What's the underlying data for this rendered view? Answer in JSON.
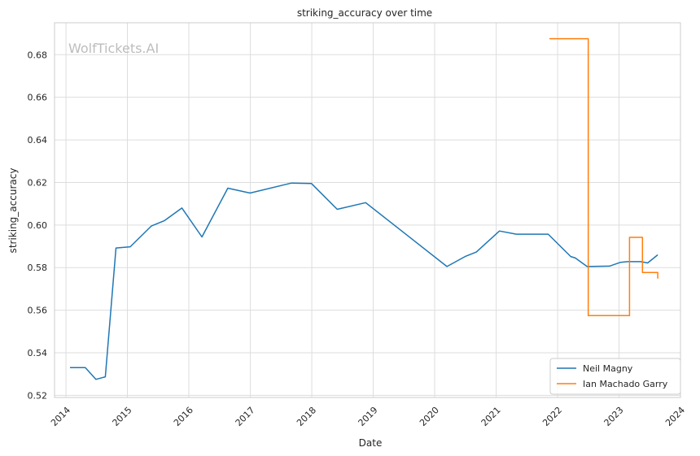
{
  "chart_data": {
    "type": "line",
    "title": "striking_accuracy over time",
    "xlabel": "Date",
    "ylabel": "striking_accuracy",
    "watermark": "WolfTickets.AI",
    "xlim": [
      "2013-10-25",
      "2024-01-01"
    ],
    "ylim": [
      0.519,
      0.695
    ],
    "x_ticks": [
      "2014",
      "2015",
      "2016",
      "2017",
      "2018",
      "2019",
      "2020",
      "2021",
      "2022",
      "2023",
      "2024"
    ],
    "y_ticks": [
      0.52,
      0.54,
      0.56,
      0.58,
      0.6,
      0.62,
      0.64,
      0.66,
      0.68
    ],
    "y_tick_labels": [
      "0.52",
      "0.54",
      "0.56",
      "0.58",
      "0.60",
      "0.62",
      "0.64",
      "0.66",
      "0.68"
    ],
    "grid": true,
    "legend_position": "lower-right",
    "series": [
      {
        "name": "Neil Magny",
        "color": "#1f77b4",
        "step": false,
        "points": [
          [
            "2014-01-25",
            0.533
          ],
          [
            "2014-04-26",
            0.533
          ],
          [
            "2014-06-28",
            0.5275
          ],
          [
            "2014-08-23",
            0.5287
          ],
          [
            "2014-10-25",
            0.5892
          ],
          [
            "2015-01-18",
            0.5898
          ],
          [
            "2015-05-23",
            0.5995
          ],
          [
            "2015-08-08",
            0.602
          ],
          [
            "2015-11-21",
            0.608
          ],
          [
            "2016-03-19",
            0.5944
          ],
          [
            "2016-08-20",
            0.6173
          ],
          [
            "2016-12-30",
            0.615
          ],
          [
            "2017-09-02",
            0.6197
          ],
          [
            "2017-12-30",
            0.6195
          ],
          [
            "2018-06-01",
            0.6074
          ],
          [
            "2018-11-17",
            0.6105
          ],
          [
            "2020-03-14",
            0.5805
          ],
          [
            "2020-06-30",
            0.5852
          ],
          [
            "2020-09-05",
            0.5873
          ],
          [
            "2021-01-20",
            0.5972
          ],
          [
            "2021-05-01",
            0.5957
          ],
          [
            "2021-11-06",
            0.5957
          ],
          [
            "2022-03-20",
            0.5852
          ],
          [
            "2022-04-16",
            0.5845
          ],
          [
            "2022-06-25",
            0.5805
          ],
          [
            "2022-11-05",
            0.5807
          ],
          [
            "2023-01-10",
            0.5825
          ],
          [
            "2023-02-20",
            0.5828
          ],
          [
            "2023-05-10",
            0.5828
          ],
          [
            "2023-06-20",
            0.5822
          ],
          [
            "2023-08-19",
            0.586
          ]
        ]
      },
      {
        "name": "Ian Machado Garry",
        "color": "#ff7f0e",
        "step": true,
        "points": [
          [
            "2021-11-13",
            0.6875
          ],
          [
            "2022-07-02",
            0.5575
          ],
          [
            "2023-01-25",
            0.5575
          ],
          [
            "2023-03-04",
            0.5942
          ],
          [
            "2023-05-20",
            0.5777
          ],
          [
            "2023-07-01",
            0.5777
          ],
          [
            "2023-08-19",
            0.5748
          ]
        ]
      }
    ]
  }
}
